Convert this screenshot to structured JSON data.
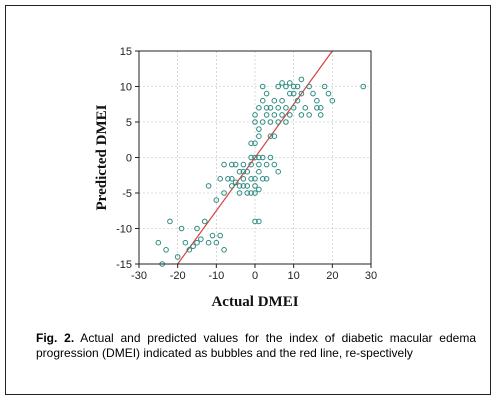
{
  "caption": {
    "lead": "Fig. 2.",
    "text": " Actual and predicted values for the index of diabetic macular edema progression (DMEI) indicated as bubbles and the red line, re-spectively"
  },
  "colors": {
    "points": "#2e8b82",
    "line": "#d9413c",
    "axis": "#222222",
    "grid": "#bdbdbd"
  },
  "chart_data": {
    "type": "scatter",
    "xlabel": "Actual DMEI",
    "ylabel": "Predicted DMEI",
    "xlim": [
      -30,
      30
    ],
    "ylim": [
      -15,
      15
    ],
    "xticks": [
      -30,
      -20,
      -10,
      0,
      10,
      20,
      30
    ],
    "yticks": [
      -15,
      -10,
      -5,
      0,
      5,
      10,
      15
    ],
    "grid": true,
    "fit_line": {
      "from": [
        -20,
        -15
      ],
      "to": [
        20,
        15
      ]
    },
    "points": [
      [
        -25,
        -12
      ],
      [
        -23,
        -13
      ],
      [
        -22,
        -9
      ],
      [
        -19,
        -10
      ],
      [
        -18,
        -12
      ],
      [
        -17,
        -13
      ],
      [
        -16,
        -12.5
      ],
      [
        -15,
        -12
      ],
      [
        -14,
        -11.5
      ],
      [
        -12,
        -12
      ],
      [
        -11,
        -11
      ],
      [
        -10,
        -12
      ],
      [
        -9,
        -11
      ],
      [
        -8,
        -13
      ],
      [
        -13,
        -9
      ],
      [
        -12,
        -4
      ],
      [
        -10,
        -6
      ],
      [
        -8,
        -5
      ],
      [
        -7,
        -3
      ],
      [
        -6,
        -4
      ],
      [
        -5,
        -3.5
      ],
      [
        -4,
        -4
      ],
      [
        -3,
        -3
      ],
      [
        -2,
        -4
      ],
      [
        -1,
        -3
      ],
      [
        -5,
        -1
      ],
      [
        -3,
        -1
      ],
      [
        -1,
        -1
      ],
      [
        0,
        -3
      ],
      [
        0,
        -4
      ],
      [
        1,
        -1
      ],
      [
        1,
        -4.5
      ],
      [
        -2,
        -5
      ],
      [
        -4,
        -5
      ],
      [
        -6,
        -3
      ],
      [
        -3,
        -2
      ],
      [
        -1,
        0
      ],
      [
        0,
        0
      ],
      [
        1,
        0
      ],
      [
        2,
        0
      ],
      [
        -8,
        -1
      ],
      [
        -6,
        -1
      ],
      [
        -9,
        -3
      ],
      [
        -4,
        -2
      ],
      [
        -2,
        -2
      ],
      [
        0,
        -5
      ],
      [
        1,
        -2
      ],
      [
        2,
        -3
      ],
      [
        3,
        -1
      ],
      [
        4,
        0
      ],
      [
        5,
        -1
      ],
      [
        6,
        -2
      ],
      [
        3,
        -3
      ],
      [
        -1,
        -5
      ],
      [
        -3,
        -4
      ],
      [
        0,
        5
      ],
      [
        0,
        6
      ],
      [
        1,
        7
      ],
      [
        1,
        4
      ],
      [
        2,
        5
      ],
      [
        2,
        8
      ],
      [
        3,
        6
      ],
      [
        3,
        7
      ],
      [
        4,
        5
      ],
      [
        4,
        7
      ],
      [
        5,
        6
      ],
      [
        5,
        8
      ],
      [
        6,
        7
      ],
      [
        6,
        5
      ],
      [
        7,
        6
      ],
      [
        7,
        8
      ],
      [
        8,
        7
      ],
      [
        8,
        5
      ],
      [
        9,
        6
      ],
      [
        9,
        9
      ],
      [
        10,
        7
      ],
      [
        10,
        10
      ],
      [
        11,
        8
      ],
      [
        11,
        10
      ],
      [
        12,
        9
      ],
      [
        12,
        11
      ],
      [
        13,
        7
      ],
      [
        14,
        10
      ],
      [
        15,
        9
      ],
      [
        16,
        8
      ],
      [
        17,
        7
      ],
      [
        18,
        10
      ],
      [
        19,
        9
      ],
      [
        20,
        8
      ],
      [
        6,
        10
      ],
      [
        7,
        10.5
      ],
      [
        8,
        10
      ],
      [
        9,
        10.5
      ],
      [
        10,
        9
      ],
      [
        2,
        10
      ],
      [
        3,
        9
      ],
      [
        4,
        3
      ],
      [
        5,
        3
      ],
      [
        1,
        3
      ],
      [
        0,
        2
      ],
      [
        -1,
        2
      ],
      [
        12,
        6
      ],
      [
        14,
        6
      ],
      [
        16,
        7
      ],
      [
        17,
        6
      ],
      [
        28,
        10
      ],
      [
        0,
        -9
      ],
      [
        1,
        -9
      ],
      [
        -15,
        -10
      ],
      [
        -20,
        -14
      ],
      [
        -24,
        -15
      ]
    ]
  }
}
